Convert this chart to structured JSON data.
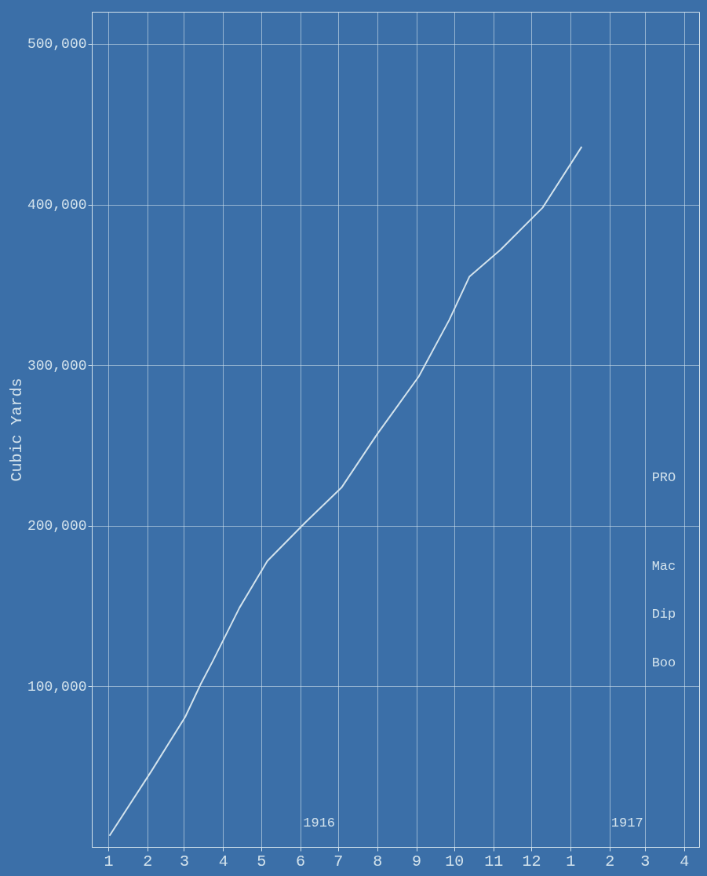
{
  "chart_data": {
    "type": "line",
    "ylabel": "Cubic Yards",
    "x": [
      "1916-01-02",
      "1916-02-04",
      "1916-03-02",
      "1916-03-14",
      "1916-03-24",
      "1916-04-14",
      "1916-05-06",
      "1916-06-05",
      "1916-07-04",
      "1916-08-01",
      "1916-09-03",
      "1916-09-27",
      "1916-10-13",
      "1916-11-07",
      "1916-12-10",
      "1917-01-10"
    ],
    "series": [
      {
        "color": "#d2e2ec",
        "values": [
          7000,
          47000,
          81000,
          101000,
          116000,
          149000,
          178000,
          202000,
          224000,
          257000,
          293000,
          328000,
          355000,
          372000,
          398000,
          436000
        ]
      }
    ],
    "xlim": [
      "1915-12-19",
      "1917-04-13"
    ],
    "xticks": [
      {
        "value": "1916-01",
        "label": "1"
      },
      {
        "value": "1916-02",
        "label": "2"
      },
      {
        "value": "1916-03",
        "label": "3"
      },
      {
        "value": "1916-04",
        "label": "4"
      },
      {
        "value": "1916-05",
        "label": "5"
      },
      {
        "value": "1916-06",
        "label": "6"
      },
      {
        "value": "1916-07",
        "label": "7"
      },
      {
        "value": "1916-08",
        "label": "8"
      },
      {
        "value": "1916-09",
        "label": "9"
      },
      {
        "value": "1916-10",
        "label": "10"
      },
      {
        "value": "1916-11",
        "label": "11"
      },
      {
        "value": "1916-12",
        "label": "12"
      },
      {
        "value": "1917-01",
        "label": "1"
      },
      {
        "value": "1917-02",
        "label": "2"
      },
      {
        "value": "1917-03",
        "label": "3"
      },
      {
        "value": "1917-04",
        "label": "4"
      }
    ],
    "ylim": [
      0,
      520000
    ],
    "yticks": [
      {
        "value": 100000,
        "label": "100,000"
      },
      {
        "value": 200000,
        "label": "200,000"
      },
      {
        "value": 300000,
        "label": "300,000"
      },
      {
        "value": 400000,
        "label": "400,000"
      },
      {
        "value": 500000,
        "label": "500,000"
      }
    ],
    "annotations": [
      "1916",
      "1917",
      "PRO",
      "Mac",
      "Dip",
      "Boo"
    ],
    "grid": true,
    "marker": "none",
    "line_style": "solid"
  }
}
